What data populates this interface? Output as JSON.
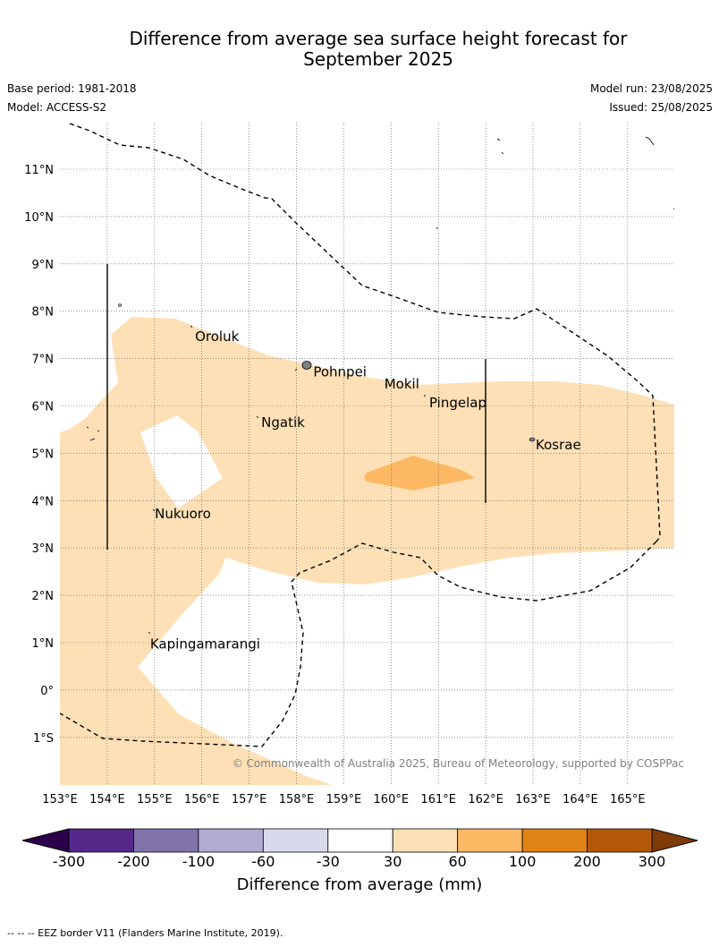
{
  "title_line1": "Difference from average sea surface height forecast for",
  "title_line2": "September 2025",
  "base_period": "Base period: 1981-2018",
  "model": "Model: ACCESS-S2",
  "model_run": "Model run: 23/08/2025",
  "issued": "Issued: 25/08/2025",
  "copyright": "© Commonwealth of Australia 2025, Bureau of Meteorology, supported by COSPPac",
  "lat_labels": [
    "11°N",
    "10°N",
    "9°N",
    "8°N",
    "7°N",
    "6°N",
    "5°N",
    "4°N",
    "3°N",
    "2°N",
    "1°N",
    "0°",
    "1°S"
  ],
  "lon_labels": [
    "153°E",
    "154°E",
    "155°E",
    "156°E",
    "157°E",
    "158°E",
    "159°E",
    "160°E",
    "161°E",
    "162°E",
    "163°E",
    "164°E",
    "165°E"
  ],
  "places": [
    {
      "name": "Oroluk",
      "lon": 155.8,
      "lat": 7.6
    },
    {
      "name": "Pohnpei",
      "lon": 158.3,
      "lat": 6.85
    },
    {
      "name": "Mokil",
      "lon": 159.8,
      "lat": 6.6
    },
    {
      "name": "Pingelap",
      "lon": 160.75,
      "lat": 6.2
    },
    {
      "name": "Ngatik",
      "lon": 157.2,
      "lat": 5.78
    },
    {
      "name": "Kosrae",
      "lon": 163.0,
      "lat": 5.31
    },
    {
      "name": "Nukuoro",
      "lon": 154.95,
      "lat": 3.85
    },
    {
      "name": "Kapingamarangi",
      "lon": 154.85,
      "lat": 1.1
    }
  ],
  "colorbar": {
    "ticks": [
      "-300",
      "-200",
      "-100",
      "-60",
      "-30",
      "30",
      "60",
      "100",
      "200",
      "300"
    ],
    "colors": [
      "#542788",
      "#8073ac",
      "#b2abd2",
      "#d8daeb",
      "#ffffff",
      "#fee0b6",
      "#fdb863",
      "#e08214",
      "#b35806"
    ],
    "under_color": "#2d004b",
    "over_color": "#7f3b08",
    "label": "Difference from average (mm)"
  },
  "footnote": "--  --  -- EEZ border V11 (Flanders Marine Institute, 2019)."
}
